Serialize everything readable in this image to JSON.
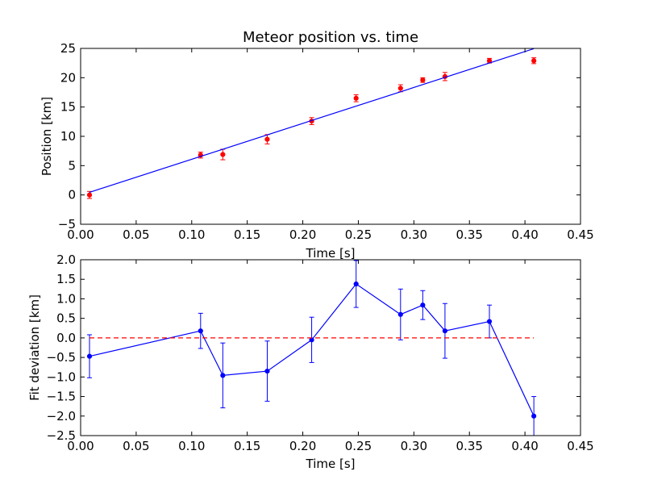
{
  "chart_data": [
    {
      "type": "scatter",
      "title": "Meteor position vs. time",
      "xlabel": "Time [s]",
      "ylabel": "Position [km]",
      "xlim": [
        0.0,
        0.45
      ],
      "ylim": [
        -5,
        25
      ],
      "xticks": [
        "0.00",
        "0.05",
        "0.10",
        "0.15",
        "0.20",
        "0.25",
        "0.30",
        "0.35",
        "0.40",
        "0.45"
      ],
      "yticks": [
        "−5",
        "0",
        "5",
        "10",
        "15",
        "20",
        "25"
      ],
      "colors": {
        "points": "#ff0000",
        "fit_line": "#0000ff"
      },
      "series": [
        {
          "kind": "points-with-errorbars",
          "x": [
            0.008,
            0.108,
            0.128,
            0.168,
            0.208,
            0.248,
            0.288,
            0.308,
            0.328,
            0.368,
            0.408
          ],
          "y": [
            0.0,
            6.8,
            6.9,
            9.5,
            12.6,
            16.5,
            18.2,
            19.6,
            20.2,
            22.9,
            22.9
          ],
          "yerr": [
            0.6,
            0.5,
            0.9,
            0.8,
            0.6,
            0.6,
            0.6,
            0.4,
            0.7,
            0.4,
            0.5
          ]
        },
        {
          "kind": "fit-line",
          "x": [
            0.008,
            0.408
          ],
          "y": [
            0.45,
            24.95
          ]
        }
      ]
    },
    {
      "type": "line",
      "title": "",
      "xlabel": "Time [s]",
      "ylabel": "Fit deviation [km]",
      "xlim": [
        0.0,
        0.45
      ],
      "ylim": [
        -2.5,
        2.0
      ],
      "xticks": [
        "0.00",
        "0.05",
        "0.10",
        "0.15",
        "0.20",
        "0.25",
        "0.30",
        "0.35",
        "0.40",
        "0.45"
      ],
      "yticks": [
        "−2.5",
        "−2.0",
        "−1.5",
        "−1.0",
        "−0.5",
        "0.0",
        "0.5",
        "1.0",
        "1.5",
        "2.0"
      ],
      "colors": {
        "residuals": "#0000ff",
        "zero_line": "#ff0000"
      },
      "series": [
        {
          "kind": "residuals-with-errorbars",
          "x": [
            0.008,
            0.108,
            0.128,
            0.168,
            0.208,
            0.248,
            0.288,
            0.308,
            0.328,
            0.368,
            0.408
          ],
          "y": [
            -0.47,
            0.18,
            -0.96,
            -0.85,
            -0.05,
            1.38,
            0.6,
            0.84,
            0.18,
            0.42,
            -2.0
          ],
          "yerr": [
            0.55,
            0.45,
            0.83,
            0.77,
            0.58,
            0.6,
            0.65,
            0.37,
            0.7,
            0.42,
            0.5
          ]
        },
        {
          "kind": "zero-line-dashed",
          "x": [
            0.008,
            0.408
          ],
          "y": [
            0.0,
            0.0
          ]
        }
      ]
    }
  ]
}
